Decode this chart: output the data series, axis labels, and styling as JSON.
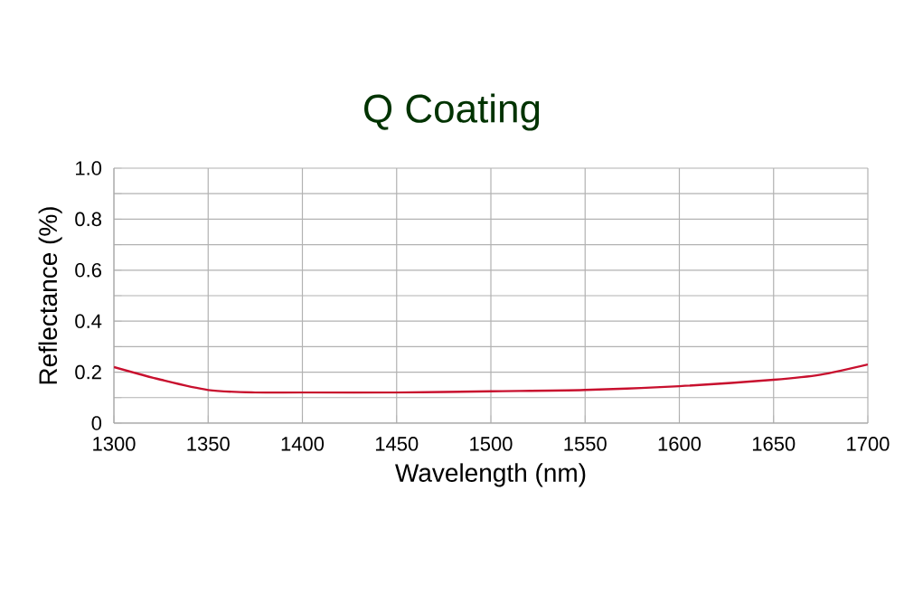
{
  "chart_data": {
    "type": "line",
    "title": "Q Coating",
    "xlabel": "Wavelength (nm)",
    "ylabel": "Reflectance (%)",
    "x": [
      1300,
      1325,
      1350,
      1375,
      1400,
      1450,
      1500,
      1550,
      1600,
      1650,
      1675,
      1700
    ],
    "series": [
      {
        "color": "#c8102e",
        "values": [
          0.22,
          0.17,
          0.13,
          0.12,
          0.12,
          0.12,
          0.125,
          0.13,
          0.145,
          0.17,
          0.19,
          0.23
        ]
      }
    ],
    "xlim": [
      1300,
      1700
    ],
    "xticks": [
      1300,
      1350,
      1400,
      1450,
      1500,
      1550,
      1600,
      1650,
      1700
    ],
    "ylim": [
      0,
      1
    ],
    "yticks": [
      0,
      {
        "value": 0.1,
        "label": null
      },
      0.2,
      {
        "value": 0.3,
        "label": null
      },
      0.4,
      {
        "value": 0.5,
        "label": null
      },
      0.6,
      {
        "value": 0.7,
        "label": null
      },
      0.8,
      {
        "value": 0.9,
        "label": null
      },
      {
        "value": 1,
        "label": "1.0"
      }
    ],
    "grid": true,
    "marker": "none",
    "line_style": "solid"
  }
}
